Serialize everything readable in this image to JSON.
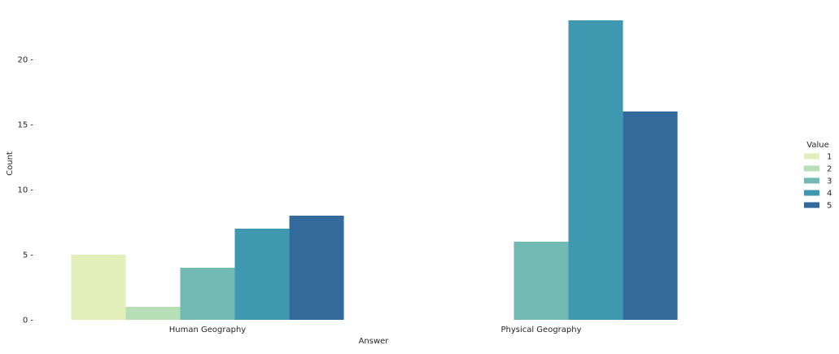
{
  "chart_data": {
    "type": "bar",
    "title": "",
    "xlabel": "Answer",
    "ylabel": "Count",
    "categories": [
      "Human Geography",
      "Physical Geography"
    ],
    "ylim": [
      0,
      23
    ],
    "yticks": [
      0,
      5,
      10,
      15,
      20
    ],
    "grid": false,
    "legend": {
      "title": "Value",
      "placement": "right"
    },
    "series": [
      {
        "name": "1",
        "color": "#e2efb8",
        "values": [
          5,
          0
        ]
      },
      {
        "name": "2",
        "color": "#b6dfb6",
        "values": [
          1,
          0
        ]
      },
      {
        "name": "3",
        "color": "#72b9b4",
        "values": [
          4,
          6
        ]
      },
      {
        "name": "4",
        "color": "#3e98b0",
        "values": [
          7,
          23
        ]
      },
      {
        "name": "5",
        "color": "#326b9b",
        "values": [
          8,
          16
        ]
      }
    ]
  }
}
